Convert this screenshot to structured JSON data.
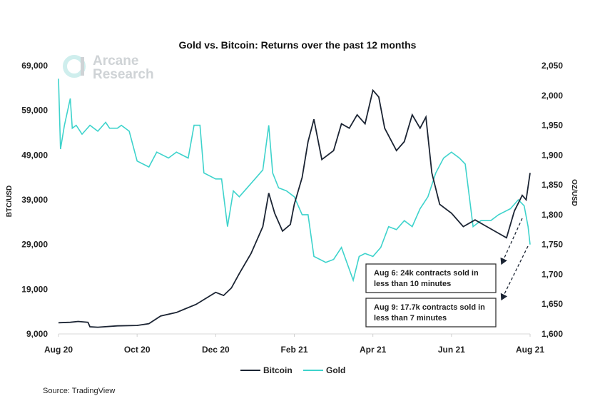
{
  "chart_data": {
    "type": "line",
    "title": "Gold vs. Bitcoin: Returns over the past 12 months",
    "xlabel": "",
    "ylabel_left": "BTC/USD",
    "ylabel_right": "OZ/USD",
    "x_ticks": [
      "Aug 20",
      "Oct 20",
      "Dec 20",
      "Feb 21",
      "Apr 21",
      "Jun 21",
      "Aug 21"
    ],
    "x_unit": "months since Aug 2020",
    "xlim": [
      0,
      12
    ],
    "ylim_left": [
      9000,
      69000
    ],
    "ylim_right": [
      1600,
      2050
    ],
    "y_ticks_left": [
      "9,000",
      "19,000",
      "29,000",
      "39,000",
      "49,000",
      "59,000",
      "69,000"
    ],
    "y_ticks_right": [
      "1,600",
      "1,650",
      "1,700",
      "1,750",
      "1,800",
      "1,850",
      "1,900",
      "1,950",
      "2,000",
      "2,050"
    ],
    "legend": "bottom-center",
    "series": [
      {
        "name": "Bitcoin",
        "axis": "left",
        "color": "#1b2433",
        "x": [
          0,
          0.3,
          0.5,
          0.75,
          0.8,
          1,
          1.5,
          2,
          2.3,
          2.6,
          3,
          3.5,
          4,
          4.2,
          4.4,
          4.6,
          4.9,
          5.2,
          5.35,
          5.5,
          5.7,
          5.9,
          6,
          6.2,
          6.35,
          6.5,
          6.7,
          7,
          7.2,
          7.4,
          7.6,
          7.8,
          8,
          8.15,
          8.3,
          8.6,
          8.8,
          9,
          9.2,
          9.35,
          9.5,
          9.7,
          10,
          10.3,
          10.6,
          10.9,
          11.2,
          11.4,
          11.6,
          11.8,
          11.9,
          12
        ],
        "y": [
          11500,
          11600,
          11800,
          11600,
          10600,
          10500,
          10800,
          10900,
          11300,
          13000,
          13800,
          15600,
          18300,
          17600,
          19300,
          22500,
          27000,
          33000,
          40500,
          36000,
          32000,
          33500,
          38000,
          44000,
          52000,
          57000,
          48000,
          50000,
          56000,
          55000,
          58000,
          56000,
          63500,
          62000,
          55000,
          50000,
          52000,
          58000,
          55000,
          57500,
          45000,
          38000,
          36000,
          33000,
          34500,
          33000,
          31500,
          30500,
          36500,
          40000,
          39000,
          45000
        ]
      },
      {
        "name": "Gold",
        "axis": "right",
        "color": "#3ed3cc",
        "x": [
          0,
          0.05,
          0.15,
          0.3,
          0.35,
          0.45,
          0.6,
          0.8,
          1,
          1.2,
          1.3,
          1.5,
          1.6,
          1.8,
          2,
          2.3,
          2.5,
          2.8,
          3,
          3.3,
          3.45,
          3.6,
          3.7,
          4,
          4.15,
          4.3,
          4.45,
          4.6,
          4.8,
          5,
          5.2,
          5.35,
          5.45,
          5.6,
          5.8,
          6,
          6.2,
          6.35,
          6.5,
          6.8,
          7,
          7.2,
          7.5,
          7.65,
          7.8,
          8,
          8.2,
          8.4,
          8.6,
          8.8,
          9,
          9.2,
          9.4,
          9.6,
          9.8,
          10,
          10.2,
          10.35,
          10.55,
          10.75,
          11,
          11.2,
          11.5,
          11.7,
          11.85,
          11.95,
          12
        ],
        "y": [
          2028,
          1910,
          1950,
          1995,
          1945,
          1950,
          1935,
          1950,
          1940,
          1955,
          1945,
          1945,
          1950,
          1940,
          1890,
          1880,
          1905,
          1895,
          1905,
          1895,
          1950,
          1950,
          1870,
          1860,
          1860,
          1780,
          1840,
          1830,
          1845,
          1860,
          1875,
          1950,
          1870,
          1845,
          1840,
          1830,
          1800,
          1800,
          1730,
          1720,
          1725,
          1745,
          1690,
          1730,
          1735,
          1730,
          1745,
          1780,
          1775,
          1790,
          1780,
          1810,
          1830,
          1870,
          1895,
          1905,
          1895,
          1885,
          1780,
          1790,
          1790,
          1800,
          1810,
          1825,
          1815,
          1780,
          1750
        ]
      }
    ],
    "annotations": [
      "Aug 6: 24k contracts sold in less than 10 minutes",
      "Aug 9: 17.7k contracts sold in less than 7 minutes"
    ]
  },
  "annotations": {
    "a1": {
      "line1": "Aug 6: 24k contracts sold in",
      "line2": "less than 10 minutes"
    },
    "a2": {
      "line1": "Aug 9: 17.7k contracts sold in",
      "line2": "less than 7 minutes"
    }
  },
  "legend": {
    "bitcoin": "Bitcoin",
    "gold": "Gold"
  },
  "logo": {
    "line1": "Arcane",
    "line2": "Research"
  },
  "source": "Source: TradingView"
}
